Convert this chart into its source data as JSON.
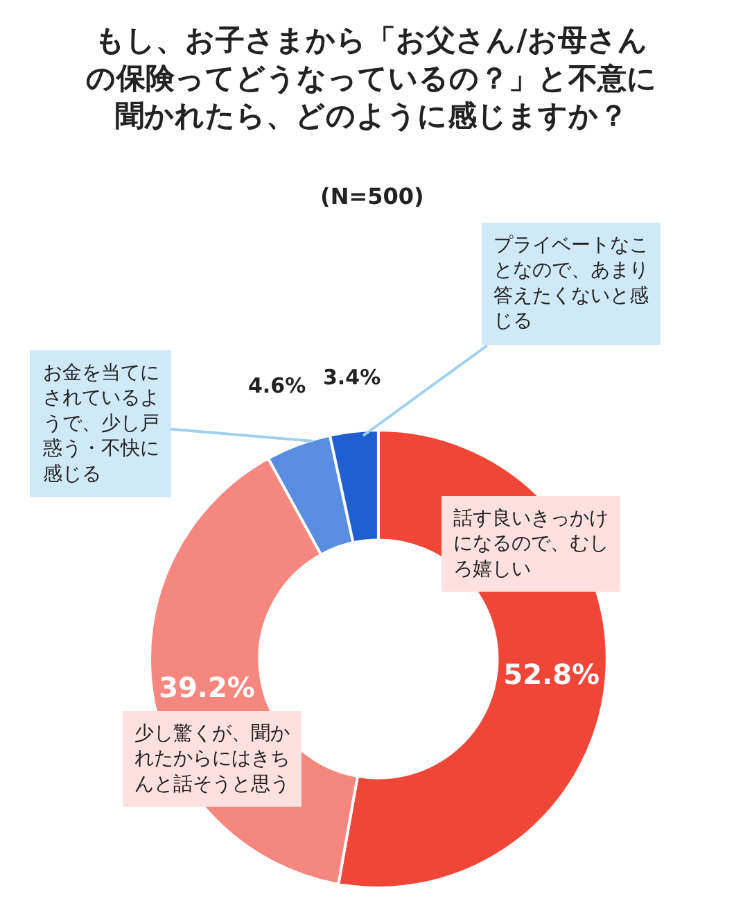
{
  "chart_data": {
    "type": "donut",
    "title": "もし、お子さまから「お父さん/お母さんの保険ってどうなっているの？」と不意に聞かれたら、どのように感じますか？",
    "subtitle": "(N=500)",
    "categories": [
      "話す良いきっかけになるので、むしろ嬉しい",
      "少し驚くが、聞かれたからにはきちんと話そうと思う",
      "お金を当てにされているようで、少し戸惑う・不快に感じる",
      "プライベートなことなので、あまり答えたくないと感じる"
    ],
    "values": [
      52.8,
      39.2,
      4.6,
      3.4
    ],
    "value_labels": [
      "52.8%",
      "39.2%",
      "4.6%",
      "3.4%"
    ],
    "colors": [
      "#f04638",
      "#f6877e",
      "#5a8de0",
      "#1f5fd0"
    ],
    "legend": false
  }
}
